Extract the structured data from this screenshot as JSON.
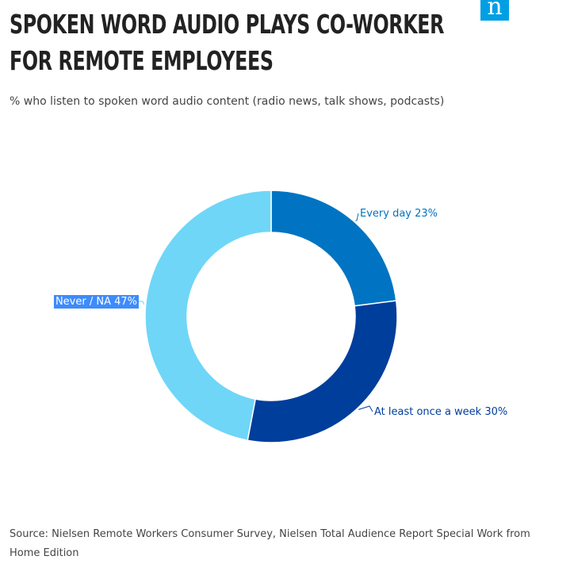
{
  "header": {
    "title": "SPOKEN WORD AUDIO PLAYS CO-WORKER FOR REMOTE EMPLOYEES",
    "subtitle": "% who listen to spoken word audio content (radio news, talk shows, podcasts)",
    "logo_letter": "n"
  },
  "footer": {
    "source": "Source: Nielsen Remote Workers Consumer Survey, Nielsen Total Audience Report Special Work from Home Edition"
  },
  "colors": {
    "logo": "#009fe3",
    "label_highlight": "#3d8bfd"
  },
  "chart_data": {
    "type": "pie",
    "donut": true,
    "slices": [
      {
        "label": "Every day 23%",
        "value": 23,
        "color": "#0074c2"
      },
      {
        "label": "At least once a week 30%",
        "value": 30,
        "color": "#003e9c"
      },
      {
        "label": "Never / NA 47%",
        "value": 47,
        "color": "#6fd6f7"
      }
    ]
  }
}
